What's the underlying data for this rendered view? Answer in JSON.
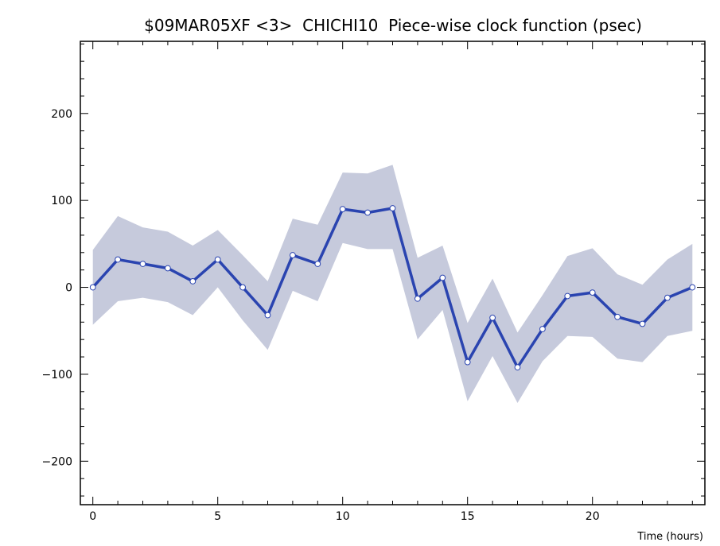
{
  "chart_data": {
    "type": "line",
    "title": "$09MAR05XF <3>  CHICHI10  Piece-wise clock function (psec)",
    "xlabel": "Time (hours)",
    "ylabel": "",
    "xlim": [
      -0.5,
      24.5
    ],
    "ylim": [
      -250,
      283
    ],
    "x_ticks": [
      0,
      5,
      10,
      15,
      20
    ],
    "x_tick_labels": [
      "0",
      "5",
      "10",
      "15",
      "20"
    ],
    "y_ticks": [
      -200,
      -100,
      0,
      100,
      200
    ],
    "y_tick_labels": [
      "−200",
      "−100",
      "0",
      "100",
      "200"
    ],
    "grid": false,
    "series": [
      {
        "x": [
          0,
          1,
          2,
          3,
          4,
          5,
          6,
          7,
          8,
          9,
          10,
          11,
          12,
          13,
          14,
          15,
          16,
          17,
          18,
          19,
          20,
          21,
          22,
          23,
          24
        ],
        "values": [
          0,
          32,
          27,
          22,
          7,
          32,
          0,
          -32,
          37,
          27,
          90,
          86,
          91,
          -13,
          11,
          -86,
          -35,
          -92,
          -48,
          -10,
          -6,
          -34,
          -42,
          -12,
          0
        ],
        "upper": [
          43,
          82,
          69,
          64,
          48,
          66,
          37,
          7,
          79,
          72,
          132,
          131,
          141,
          34,
          48,
          -41,
          10,
          -52,
          -9,
          36,
          45,
          15,
          3,
          32,
          50
        ],
        "lower": [
          -43,
          -16,
          -12,
          -17,
          -32,
          0,
          -38,
          -72,
          -4,
          -16,
          51,
          44,
          44,
          -60,
          -26,
          -131,
          -79,
          -133,
          -85,
          -56,
          -57,
          -82,
          -86,
          -56,
          -50
        ],
        "line_color": "#2a44b0",
        "band_color": "#c6cadc",
        "marker": "open-circle"
      }
    ]
  }
}
